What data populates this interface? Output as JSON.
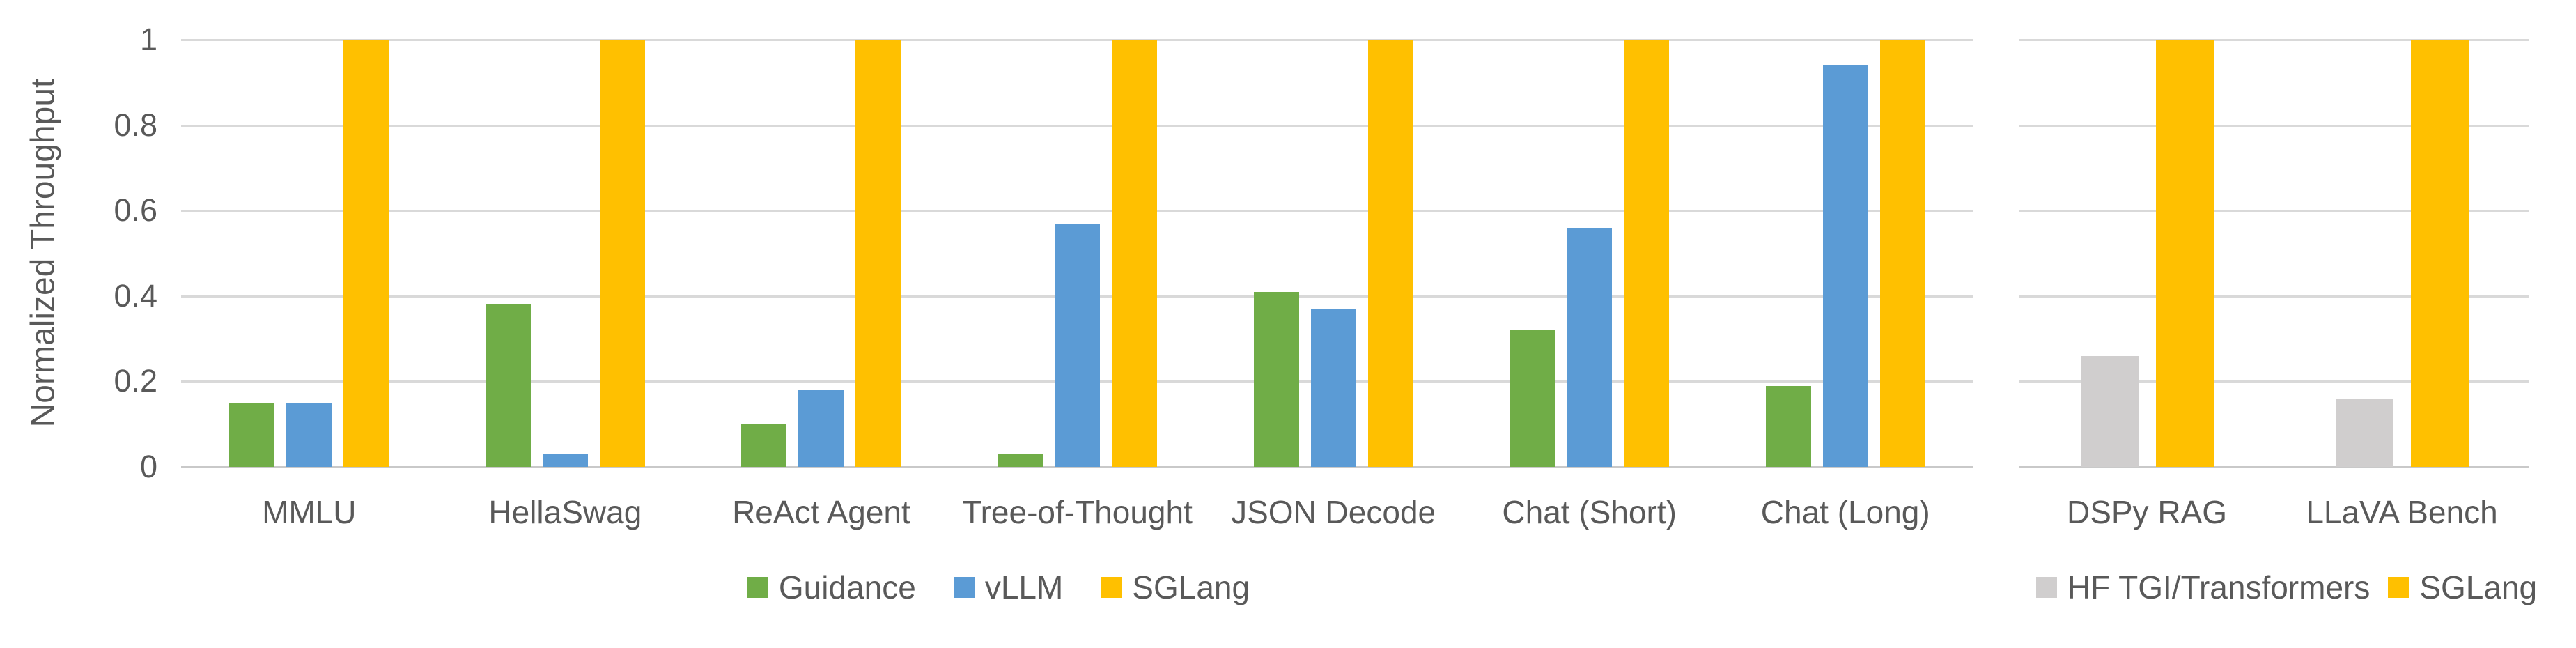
{
  "figure": {
    "y_axis": {
      "title": "Normalized Throughput",
      "tick_labels": [
        "1",
        "0.8",
        "0.6",
        "0.4",
        "0.2",
        "0"
      ],
      "min": 0,
      "max": 1
    },
    "colors": {
      "guidance_green": "#70AD47",
      "vllm_blue": "#5B9BD5",
      "sglang_yellow": "#FFC000",
      "hf_gray": "#D0CECE",
      "text": "#595959",
      "gridline": "#D9D9D9",
      "background": "#FFFFFF"
    }
  },
  "chart_data": [
    {
      "type": "bar",
      "title": "",
      "ylabel": "Normalized Throughput",
      "ylim": [
        0,
        1
      ],
      "yticks": [
        1,
        0.8,
        0.6,
        0.4,
        0.2,
        0
      ],
      "grid": true,
      "legend_position": "bottom",
      "categories": [
        "MMLU",
        "HellaSwag",
        "ReAct Agent",
        "Tree-of-Thought",
        "JSON Decode",
        "Chat (Short)",
        "Chat (Long)"
      ],
      "series": [
        {
          "name": "Guidance",
          "color": "#70AD47",
          "values": [
            0.15,
            0.38,
            0.1,
            0.03,
            0.41,
            0.32,
            0.19
          ]
        },
        {
          "name": "vLLM",
          "color": "#5B9BD5",
          "values": [
            0.15,
            0.03,
            0.18,
            0.57,
            0.37,
            0.56,
            0.94
          ]
        },
        {
          "name": "SGLang",
          "color": "#FFC000",
          "values": [
            1,
            1,
            1,
            1,
            1,
            1,
            1
          ]
        }
      ]
    },
    {
      "type": "bar",
      "title": "",
      "ylabel": "",
      "ylim": [
        0,
        1
      ],
      "yticks": [
        1,
        0.8,
        0.6,
        0.4,
        0.2,
        0
      ],
      "grid": true,
      "legend_position": "bottom",
      "categories": [
        "DSPy RAG",
        "LLaVA Bench"
      ],
      "series": [
        {
          "name": "HF TGI/Transformers",
          "color": "#D0CECE",
          "values": [
            0.26,
            0.16
          ]
        },
        {
          "name": "SGLang",
          "color": "#FFC000",
          "values": [
            1,
            1
          ]
        }
      ]
    }
  ]
}
